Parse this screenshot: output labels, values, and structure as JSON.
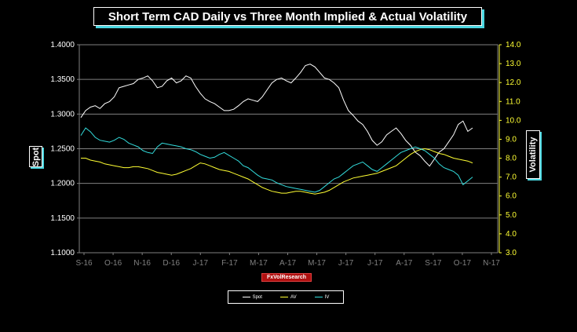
{
  "title": "Short Term CAD Daily vs  Three Month Implied  & Actual Volatility",
  "brand": "FxVolResearch",
  "colors": {
    "spot": "#ffffff",
    "av": "#ffff33",
    "iv": "#33dddd",
    "background": "#000000",
    "grid": "#808080"
  },
  "chart_data": {
    "type": "line",
    "ylabel_left": "Spot",
    "ylabel_right": "Volatility",
    "ylim_left": [
      1.1,
      1.4
    ],
    "ylim_right": [
      3.0,
      14.0
    ],
    "yticks_left": [
      "1.1000",
      "1.1500",
      "1.2000",
      "1.2500",
      "1.3000",
      "1.3500",
      "1.4000"
    ],
    "yticks_right": [
      "3.0",
      "4.0",
      "5.0",
      "6.0",
      "7.0",
      "8.0",
      "9.0",
      "10.0",
      "11.0",
      "12.0",
      "13.0",
      "14.0"
    ],
    "xticks": [
      "S-16",
      "O-16",
      "N-16",
      "D-16",
      "J-17",
      "F-17",
      "M-17",
      "A-17",
      "M-17",
      "J-17",
      "J-17",
      "A-17",
      "S-17",
      "O-17",
      "N-17"
    ],
    "grid": true,
    "legend_position": "bottom",
    "series": [
      {
        "name": "Spot",
        "axis": "left",
        "values": [
          1.295,
          1.305,
          1.31,
          1.312,
          1.308,
          1.315,
          1.318,
          1.325,
          1.338,
          1.34,
          1.342,
          1.344,
          1.35,
          1.352,
          1.355,
          1.348,
          1.338,
          1.34,
          1.348,
          1.352,
          1.345,
          1.348,
          1.355,
          1.352,
          1.34,
          1.33,
          1.322,
          1.318,
          1.315,
          1.31,
          1.305,
          1.305,
          1.307,
          1.312,
          1.318,
          1.322,
          1.32,
          1.318,
          1.325,
          1.335,
          1.345,
          1.35,
          1.352,
          1.348,
          1.345,
          1.352,
          1.36,
          1.37,
          1.372,
          1.368,
          1.36,
          1.352,
          1.35,
          1.345,
          1.338,
          1.32,
          1.305,
          1.298,
          1.29,
          1.285,
          1.275,
          1.262,
          1.255,
          1.26,
          1.27,
          1.275,
          1.28,
          1.272,
          1.262,
          1.255,
          1.245,
          1.24,
          1.232,
          1.225,
          1.235,
          1.245,
          1.25,
          1.26,
          1.27,
          1.285,
          1.29,
          1.275,
          1.28
        ]
      },
      {
        "name": "AV",
        "axis": "right",
        "values": [
          8.0,
          8.0,
          7.9,
          7.85,
          7.8,
          7.7,
          7.65,
          7.6,
          7.55,
          7.5,
          7.5,
          7.55,
          7.55,
          7.5,
          7.45,
          7.35,
          7.25,
          7.2,
          7.15,
          7.1,
          7.15,
          7.25,
          7.35,
          7.45,
          7.6,
          7.75,
          7.7,
          7.6,
          7.5,
          7.4,
          7.35,
          7.3,
          7.2,
          7.1,
          7.0,
          6.9,
          6.75,
          6.6,
          6.45,
          6.35,
          6.25,
          6.2,
          6.15,
          6.15,
          6.2,
          6.25,
          6.25,
          6.2,
          6.15,
          6.1,
          6.15,
          6.2,
          6.3,
          6.45,
          6.6,
          6.75,
          6.85,
          6.95,
          7.0,
          7.05,
          7.1,
          7.15,
          7.2,
          7.3,
          7.4,
          7.5,
          7.6,
          7.8,
          8.0,
          8.2,
          8.35,
          8.45,
          8.5,
          8.45,
          8.35,
          8.25,
          8.2,
          8.1,
          8.0,
          7.95,
          7.9,
          7.85,
          7.75
        ]
      },
      {
        "name": "IV",
        "axis": "right",
        "values": [
          9.2,
          9.6,
          9.4,
          9.1,
          8.95,
          8.9,
          8.85,
          8.95,
          9.1,
          9.0,
          8.8,
          8.7,
          8.6,
          8.4,
          8.3,
          8.25,
          8.6,
          8.8,
          8.75,
          8.7,
          8.65,
          8.6,
          8.5,
          8.45,
          8.35,
          8.2,
          8.1,
          8.0,
          8.05,
          8.2,
          8.3,
          8.15,
          8.0,
          7.85,
          7.6,
          7.5,
          7.3,
          7.1,
          6.95,
          6.9,
          6.85,
          6.7,
          6.6,
          6.5,
          6.45,
          6.4,
          6.35,
          6.3,
          6.25,
          6.2,
          6.3,
          6.5,
          6.7,
          6.9,
          7.0,
          7.2,
          7.4,
          7.6,
          7.7,
          7.8,
          7.6,
          7.4,
          7.3,
          7.5,
          7.7,
          7.9,
          8.1,
          8.3,
          8.4,
          8.5,
          8.6,
          8.5,
          8.4,
          8.2,
          8.0,
          7.7,
          7.5,
          7.4,
          7.3,
          7.1,
          6.6,
          6.8,
          7.0
        ]
      }
    ]
  }
}
